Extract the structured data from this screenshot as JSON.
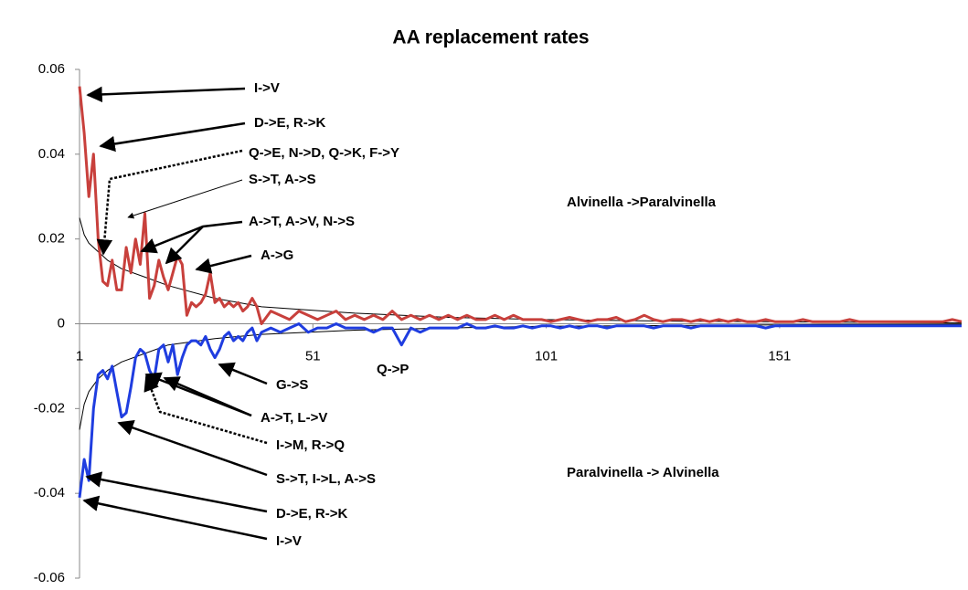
{
  "chart_data": {
    "type": "line",
    "title": "AA replacement rates",
    "x": [
      1,
      2,
      3,
      4,
      5,
      6,
      7,
      8,
      9,
      10,
      11,
      12,
      13,
      14,
      15,
      16,
      17,
      18,
      19,
      20,
      21,
      22,
      23,
      24,
      25,
      26,
      27,
      28,
      29,
      30,
      31,
      32,
      33,
      34,
      35,
      36,
      37,
      38,
      39,
      40,
      42,
      44,
      46,
      48,
      50,
      52,
      54,
      56,
      58,
      60,
      62,
      64,
      66,
      68,
      70,
      72,
      74,
      76,
      78,
      80,
      82,
      84,
      86,
      88,
      90,
      92,
      94,
      96,
      98,
      100,
      102,
      104,
      106,
      108,
      110,
      112,
      114,
      116,
      118,
      120,
      122,
      124,
      126,
      128,
      130,
      132,
      134,
      136,
      138,
      140,
      142,
      144,
      146,
      148,
      150,
      152,
      154,
      156,
      158,
      160,
      162,
      164,
      166,
      168,
      170,
      172,
      174,
      176,
      178,
      180,
      182,
      184,
      186,
      188,
      190
    ],
    "series": [
      {
        "color": "#c8403c",
        "width": 3,
        "values": [
          0.056,
          0.045,
          0.03,
          0.04,
          0.02,
          0.01,
          0.009,
          0.015,
          0.008,
          0.008,
          0.018,
          0.012,
          0.02,
          0.014,
          0.026,
          0.006,
          0.009,
          0.015,
          0.011,
          0.008,
          0.012,
          0.016,
          0.014,
          0.002,
          0.005,
          0.004,
          0.005,
          0.007,
          0.012,
          0.005,
          0.006,
          0.004,
          0.005,
          0.004,
          0.005,
          0.003,
          0.004,
          0.006,
          0.004,
          0.0,
          0.003,
          0.002,
          0.001,
          0.003,
          0.002,
          0.001,
          0.002,
          0.003,
          0.001,
          0.002,
          0.001,
          0.002,
          0.001,
          0.003,
          0.001,
          0.002,
          0.001,
          0.002,
          0.001,
          0.002,
          0.001,
          0.002,
          0.001,
          0.001,
          0.002,
          0.001,
          0.002,
          0.001,
          0.001,
          0.001,
          0.0005,
          0.001,
          0.0015,
          0.001,
          0.0005,
          0.001,
          0.001,
          0.0015,
          0.0005,
          0.001,
          0.002,
          0.001,
          0.0005,
          0.001,
          0.001,
          0.0005,
          0.001,
          0.0005,
          0.001,
          0.0005,
          0.001,
          0.0005,
          0.0005,
          0.001,
          0.0005,
          0.0005,
          0.0005,
          0.001,
          0.0005,
          0.0005,
          0.0005,
          0.0005,
          0.001,
          0.0005,
          0.0005,
          0.0005,
          0.0005,
          0.0005,
          0.0005,
          0.0005,
          0.0005,
          0.0005,
          0.0005,
          0.001,
          0.0005
        ]
      },
      {
        "color": "#1f3de0",
        "width": 3,
        "values": [
          -0.041,
          -0.032,
          -0.037,
          -0.02,
          -0.012,
          -0.011,
          -0.013,
          -0.01,
          -0.016,
          -0.022,
          -0.021,
          -0.015,
          -0.008,
          -0.006,
          -0.007,
          -0.011,
          -0.013,
          -0.006,
          -0.005,
          -0.009,
          -0.005,
          -0.012,
          -0.008,
          -0.005,
          -0.004,
          -0.004,
          -0.005,
          -0.003,
          -0.006,
          -0.008,
          -0.006,
          -0.003,
          -0.002,
          -0.004,
          -0.003,
          -0.004,
          -0.002,
          -0.001,
          -0.004,
          -0.002,
          -0.001,
          -0.002,
          -0.001,
          0,
          -0.002,
          -0.001,
          -0.001,
          0,
          -0.001,
          -0.001,
          -0.001,
          -0.002,
          -0.001,
          -0.001,
          -0.005,
          -0.001,
          -0.002,
          -0.001,
          -0.001,
          -0.001,
          -0.001,
          0,
          -0.001,
          -0.001,
          -0.0005,
          -0.001,
          -0.001,
          -0.0005,
          -0.001,
          -0.0005,
          -0.0005,
          -0.001,
          -0.0005,
          -0.001,
          -0.0005,
          -0.0005,
          -0.001,
          -0.0005,
          -0.0005,
          -0.0005,
          -0.0005,
          -0.001,
          -0.0005,
          -0.0005,
          -0.0005,
          -0.001,
          -0.0005,
          -0.0005,
          -0.0005,
          -0.0005,
          -0.0005,
          -0.0005,
          -0.0005,
          -0.001,
          -0.0005,
          -0.0005,
          -0.0005,
          -0.0005,
          -0.0005,
          -0.0005,
          -0.0005,
          -0.0005,
          -0.0005,
          -0.0005,
          -0.0005,
          -0.0005,
          -0.0005,
          -0.0005,
          -0.0005,
          -0.0005,
          -0.0005,
          -0.0005,
          -0.0005,
          -0.0005,
          -0.0005
        ]
      },
      {
        "color": "#000000",
        "width": 1,
        "x": [
          1,
          2,
          3,
          5,
          7,
          10,
          15,
          20,
          30,
          40,
          60,
          80,
          100,
          130,
          160,
          190
        ],
        "values": [
          0.025,
          0.021,
          0.019,
          0.017,
          0.015,
          0.013,
          0.011,
          0.009,
          0.006,
          0.004,
          0.0025,
          0.0015,
          0.001,
          0.0006,
          0.0004,
          0.0002
        ]
      },
      {
        "color": "#000000",
        "width": 1,
        "x": [
          1,
          2,
          3,
          5,
          7,
          10,
          15,
          20,
          30,
          40,
          60,
          80,
          100,
          130,
          160,
          190
        ],
        "values": [
          -0.025,
          -0.019,
          -0.016,
          -0.013,
          -0.011,
          -0.009,
          -0.007,
          -0.005,
          -0.0035,
          -0.0025,
          -0.0015,
          -0.001,
          -0.0006,
          -0.0004,
          -0.0002,
          -0.0001
        ]
      }
    ],
    "xlim": [
      1,
      190
    ],
    "xticks": [
      1,
      51,
      101,
      151
    ],
    "ylim": [
      -0.06,
      0.06
    ],
    "yticks": [
      0.06,
      0.04,
      0.02,
      0,
      -0.02,
      -0.04,
      -0.06
    ],
    "annotations": [
      "I->V",
      "D->E, R->K",
      "Q->E, N->D, Q->K, F->Y",
      "S->T, A->S",
      "A->T, A->V, N->S",
      "A->G",
      "Alvinella ->Paralvinella",
      "Q->P",
      "G->S",
      "A->T, L->V",
      "I->M, R->Q",
      "S->T, I->L, A->S",
      "Paralvinella -> Alvinella",
      "D->E, R->K",
      "I->V"
    ]
  }
}
